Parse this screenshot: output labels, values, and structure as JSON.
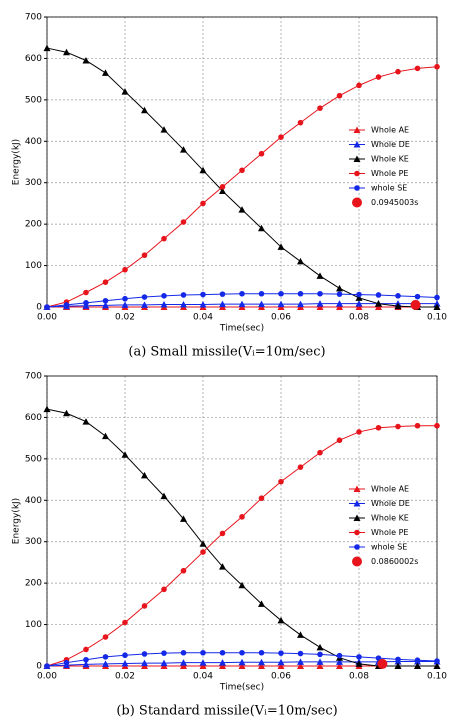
{
  "chart_data": [
    {
      "type": "line",
      "caption": "(a) Small missile(Vᵢ=10m/sec)",
      "xlabel": "Time(sec)",
      "ylabel": "Energy(kJ)",
      "x": [
        0,
        0.005,
        0.01,
        0.015,
        0.02,
        0.025,
        0.03,
        0.035,
        0.04,
        0.045,
        0.05,
        0.055,
        0.06,
        0.065,
        0.07,
        0.075,
        0.08,
        0.085,
        0.09,
        0.095,
        0.1
      ],
      "xlim": [
        0,
        0.1
      ],
      "ylim": [
        0,
        700
      ],
      "xticks": [
        {
          "value": 0,
          "label": "0.00"
        },
        {
          "value": 0.02,
          "label": "0.02"
        },
        {
          "value": 0.04,
          "label": "0.04"
        },
        {
          "value": 0.06,
          "label": "0.06"
        },
        {
          "value": 0.08,
          "label": "0.08"
        },
        {
          "value": 0.1,
          "label": "0.10"
        }
      ],
      "yticks": [
        0,
        100,
        200,
        300,
        400,
        500,
        600,
        700
      ],
      "grid": true,
      "series": [
        {
          "name": "Whole AE",
          "color": "#e8141c",
          "marker": "triangle",
          "values": [
            0,
            0,
            0,
            0,
            0,
            0,
            0,
            0,
            0,
            0,
            0,
            0,
            0,
            0,
            0,
            0,
            0,
            0,
            0,
            0,
            0
          ]
        },
        {
          "name": "Whole DE",
          "color": "#1428e8",
          "marker": "triangle",
          "values": [
            0,
            2,
            3,
            4,
            5,
            5,
            6,
            6,
            6,
            7,
            7,
            7,
            7,
            7,
            8,
            8,
            8,
            8,
            8,
            8,
            8
          ]
        },
        {
          "name": "Whole KE",
          "color": "#000000",
          "marker": "triangle",
          "values": [
            625,
            615,
            595,
            565,
            520,
            475,
            428,
            380,
            330,
            280,
            235,
            190,
            145,
            110,
            75,
            45,
            22,
            8,
            2,
            0,
            0
          ]
        },
        {
          "name": "Whole PE",
          "color": "#e8141c",
          "marker": "circle",
          "values": [
            0,
            12,
            35,
            60,
            90,
            125,
            165,
            205,
            250,
            290,
            330,
            370,
            410,
            445,
            480,
            510,
            535,
            555,
            568,
            576,
            580
          ]
        },
        {
          "name": "whole SE",
          "color": "#1428e8",
          "marker": "circle",
          "values": [
            0,
            5,
            10,
            15,
            20,
            24,
            27,
            29,
            30,
            31,
            32,
            32,
            32,
            32,
            32,
            31,
            30,
            29,
            27,
            25,
            23
          ]
        },
        {
          "name": "0.0945003s",
          "color": "#e8141c",
          "marker": "dot",
          "x": [
            0.0945003
          ],
          "values": [
            5
          ]
        }
      ]
    },
    {
      "type": "line",
      "caption": "(b) Standard missile(Vᵢ=10m/sec)",
      "xlabel": "Time(sec)",
      "ylabel": "Energy(kJ)",
      "x": [
        0,
        0.005,
        0.01,
        0.015,
        0.02,
        0.025,
        0.03,
        0.035,
        0.04,
        0.045,
        0.05,
        0.055,
        0.06,
        0.065,
        0.07,
        0.075,
        0.08,
        0.085,
        0.09,
        0.095,
        0.1
      ],
      "xlim": [
        0,
        0.1
      ],
      "ylim": [
        0,
        700
      ],
      "xticks": [
        {
          "value": 0,
          "label": "0.00"
        },
        {
          "value": 0.02,
          "label": "0.02"
        },
        {
          "value": 0.04,
          "label": "0.04"
        },
        {
          "value": 0.06,
          "label": "0.06"
        },
        {
          "value": 0.08,
          "label": "0.08"
        },
        {
          "value": 0.1,
          "label": "0.10"
        }
      ],
      "yticks": [
        0,
        100,
        200,
        300,
        400,
        500,
        600,
        700
      ],
      "grid": true,
      "series": [
        {
          "name": "Whole AE",
          "color": "#e8141c",
          "marker": "triangle",
          "values": [
            0,
            0,
            0,
            0,
            0,
            0,
            0,
            0,
            0,
            0,
            0,
            0,
            0,
            0,
            0,
            0,
            0,
            0,
            0,
            0,
            0
          ]
        },
        {
          "name": "Whole DE",
          "color": "#1428e8",
          "marker": "triangle",
          "values": [
            0,
            2,
            4,
            5,
            6,
            7,
            7,
            8,
            8,
            8,
            9,
            9,
            9,
            10,
            10,
            10,
            10,
            10,
            11,
            11,
            11
          ]
        },
        {
          "name": "Whole KE",
          "color": "#000000",
          "marker": "triangle",
          "values": [
            620,
            610,
            590,
            555,
            510,
            460,
            410,
            355,
            295,
            240,
            195,
            150,
            110,
            75,
            45,
            20,
            5,
            0,
            0,
            0,
            0
          ]
        },
        {
          "name": "Whole PE",
          "color": "#e8141c",
          "marker": "circle",
          "values": [
            0,
            15,
            40,
            70,
            105,
            145,
            185,
            230,
            275,
            320,
            360,
            405,
            445,
            480,
            515,
            545,
            565,
            575,
            578,
            580,
            580
          ]
        },
        {
          "name": "whole SE",
          "color": "#1428e8",
          "marker": "circle",
          "values": [
            0,
            8,
            15,
            22,
            26,
            29,
            31,
            32,
            32,
            32,
            32,
            32,
            31,
            30,
            28,
            25,
            22,
            19,
            16,
            14,
            12
          ]
        },
        {
          "name": "0.0860002s",
          "color": "#e8141c",
          "marker": "dot",
          "x": [
            0.0860002
          ],
          "values": [
            5
          ]
        }
      ]
    }
  ]
}
